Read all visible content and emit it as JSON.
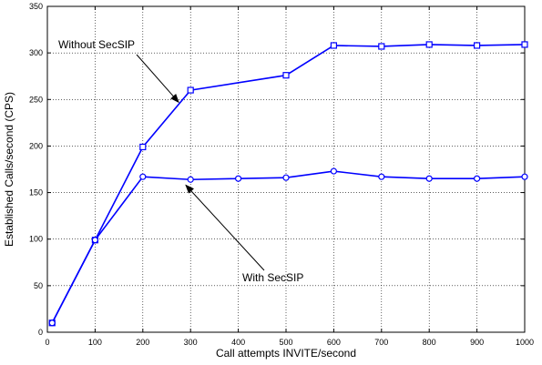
{
  "chart_data": {
    "type": "line",
    "title": "",
    "xlabel": "Call attempts INVITE/second",
    "ylabel": "Established Calls/second (CPS)",
    "xlim": [
      0,
      1000
    ],
    "ylim": [
      0,
      350
    ],
    "xticks": [
      0,
      100,
      200,
      300,
      400,
      500,
      600,
      700,
      800,
      900,
      1000
    ],
    "yticks": [
      0,
      50,
      100,
      150,
      200,
      250,
      300,
      350
    ],
    "grid": true,
    "grid_style": "dotted",
    "legend": "none",
    "series": [
      {
        "name": "Without SecSIP",
        "color": "#0000ff",
        "marker": "square",
        "x": [
          10,
          100,
          200,
          300,
          500,
          600,
          700,
          800,
          900,
          1000
        ],
        "y": [
          10,
          99,
          199,
          260,
          276,
          308,
          307,
          309,
          308,
          309
        ]
      },
      {
        "name": "With SecSIP",
        "color": "#0000ff",
        "marker": "circle",
        "x": [
          10,
          100,
          200,
          300,
          400,
          500,
          600,
          700,
          800,
          900,
          1000
        ],
        "y": [
          10,
          99,
          167,
          164,
          165,
          166,
          173,
          167,
          165,
          165,
          167
        ]
      }
    ],
    "annotations": [
      {
        "text": "Without SecSIP",
        "arrow_to": [
          275,
          247
        ]
      },
      {
        "text": "With SecSIP",
        "arrow_to": [
          290,
          158
        ]
      }
    ]
  }
}
